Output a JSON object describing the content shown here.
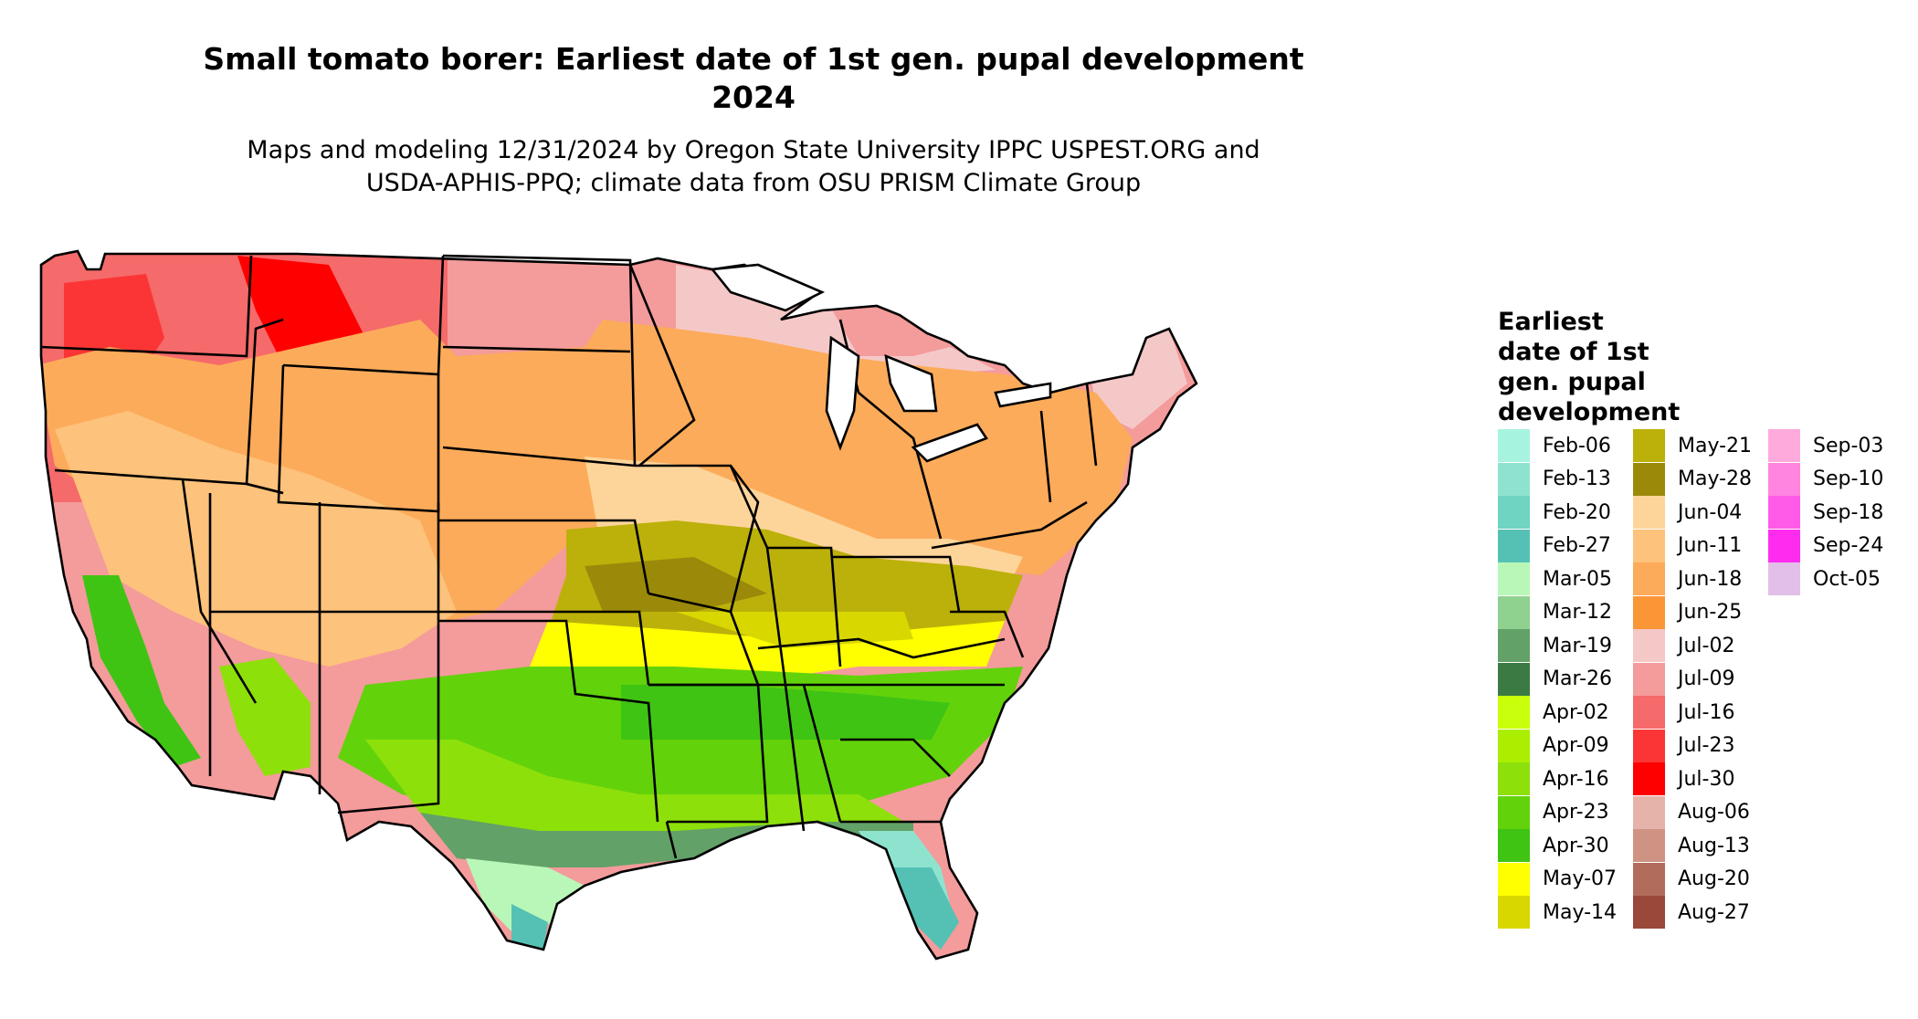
{
  "title_line1": "Small tomato borer: Earliest date of 1st gen. pupal development",
  "title_line2": "2024",
  "subtitle_line1": "Maps and modeling 12/31/2024 by Oregon State University IPPC USPEST.ORG and",
  "subtitle_line2": "USDA-APHIS-PPQ; climate data from OSU PRISM Climate Group",
  "legend": {
    "title_lines": [
      "Earliest",
      "date of 1st",
      "gen. pupal",
      "development"
    ],
    "items": [
      {
        "label": "Feb-06",
        "color": "#a6f3e0"
      },
      {
        "label": "Feb-13",
        "color": "#8ee3cf"
      },
      {
        "label": "Feb-20",
        "color": "#6fd4c1"
      },
      {
        "label": "Feb-27",
        "color": "#55c1b4"
      },
      {
        "label": "Mar-05",
        "color": "#b9f7b9"
      },
      {
        "label": "Mar-12",
        "color": "#8fd18f"
      },
      {
        "label": "Mar-19",
        "color": "#62a167"
      },
      {
        "label": "Mar-26",
        "color": "#3c7a44"
      },
      {
        "label": "Apr-02",
        "color": "#c9ff0a"
      },
      {
        "label": "Apr-09",
        "color": "#abee00"
      },
      {
        "label": "Apr-16",
        "color": "#8ee00b"
      },
      {
        "label": "Apr-23",
        "color": "#62d20b"
      },
      {
        "label": "Apr-30",
        "color": "#3fc414"
      },
      {
        "label": "May-07",
        "color": "#ffff00"
      },
      {
        "label": "May-14",
        "color": "#d8d800"
      },
      {
        "label": "May-21",
        "color": "#bcb10a"
      },
      {
        "label": "May-28",
        "color": "#9b8a0a"
      },
      {
        "label": "Jun-04",
        "color": "#fdd59b"
      },
      {
        "label": "Jun-11",
        "color": "#fdc27b"
      },
      {
        "label": "Jun-18",
        "color": "#fcab5a"
      },
      {
        "label": "Jun-25",
        "color": "#fb9636"
      },
      {
        "label": "Jul-02",
        "color": "#f5c8c8"
      },
      {
        "label": "Jul-09",
        "color": "#f49b9b"
      },
      {
        "label": "Jul-16",
        "color": "#f56a6a"
      },
      {
        "label": "Jul-23",
        "color": "#fb3535"
      },
      {
        "label": "Jul-30",
        "color": "#ff0000"
      },
      {
        "label": "Aug-06",
        "color": "#e6b3aa"
      },
      {
        "label": "Aug-13",
        "color": "#cf9383"
      },
      {
        "label": "Aug-20",
        "color": "#b26c5b"
      },
      {
        "label": "Aug-27",
        "color": "#99483a"
      },
      {
        "label": "Sep-03",
        "color": "#ffaadc"
      },
      {
        "label": "Sep-10",
        "color": "#ff85e0"
      },
      {
        "label": "Sep-18",
        "color": "#ff5ae8"
      },
      {
        "label": "Sep-24",
        "color": "#ff2cf0"
      },
      {
        "label": "Oct-05",
        "color": "#e2bfe8"
      }
    ]
  }
}
